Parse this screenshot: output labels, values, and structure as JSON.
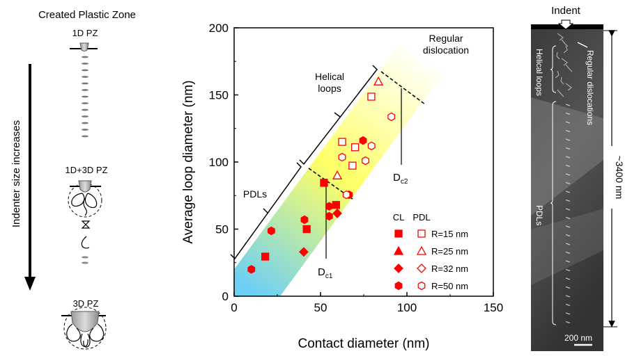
{
  "left_panel": {
    "title": "Created Plastic Zone",
    "arrow_label": "Indenter size increases",
    "stages": [
      "1D PZ",
      "1D+3D PZ",
      "3D PZ"
    ]
  },
  "chart_data": {
    "type": "scatter",
    "xlabel": "Contact diameter (nm)",
    "ylabel": "Average loop diameter (nm)",
    "xlim": [
      0,
      150
    ],
    "ylim": [
      0,
      200
    ],
    "xticks": [
      0,
      50,
      100,
      150
    ],
    "yticks": [
      0,
      50,
      100,
      150,
      200
    ],
    "grid": false,
    "legend_position": "bottom-right",
    "legend_headers": [
      "CL",
      "PDL"
    ],
    "marker_color": "#ff0000",
    "series": [
      {
        "name": "R=15 nm",
        "shape": "square",
        "CL": [
          [
            18,
            29.5
          ],
          [
            42,
            50
          ],
          [
            52,
            84.5
          ],
          [
            59,
            68
          ]
        ],
        "PDL": [
          [
            62.5,
            115
          ],
          [
            70,
            111
          ],
          [
            68.5,
            97.3
          ],
          [
            79.4,
            148.7
          ]
        ]
      },
      {
        "name": "R=25 nm",
        "shape": "triangle",
        "CL": [],
        "PDL": [
          [
            59.7,
            90
          ],
          [
            83.5,
            160
          ]
        ]
      },
      {
        "name": "R=32 nm",
        "shape": "diamond",
        "CL": [
          [
            40.3,
            33
          ],
          [
            59.7,
            61.7
          ]
        ],
        "PDL": []
      },
      {
        "name": "R=50 nm",
        "shape": "hexagon",
        "CL": [
          [
            10,
            20
          ],
          [
            21.5,
            48.7
          ],
          [
            40.7,
            57
          ],
          [
            55,
            67
          ],
          [
            55,
            59.6
          ],
          [
            66.5,
            75.6
          ],
          [
            74.6,
            116
          ]
        ],
        "PDL": [
          [
            62.5,
            103.6
          ],
          [
            76,
            101
          ],
          [
            79.5,
            112
          ],
          [
            91,
            133.7
          ],
          [
            65,
            75.6
          ]
        ]
      }
    ],
    "annotations": {
      "pdls": "PDLs",
      "helical": "Helical loops",
      "regular": "Regular dislocation",
      "dc1_main": "D",
      "dc1_sub": "c1",
      "dc2_main": "D",
      "dc2_sub": "c2"
    },
    "band_colors": [
      "#6ccff6",
      "#ffff66",
      "#ffffff"
    ]
  },
  "tem_panel": {
    "indent": "Indent",
    "regular": "Regular dislocations",
    "helical": "Helical loops",
    "pdls": "PDLs",
    "depth": "~3400 nm",
    "scale": "200 nm"
  }
}
